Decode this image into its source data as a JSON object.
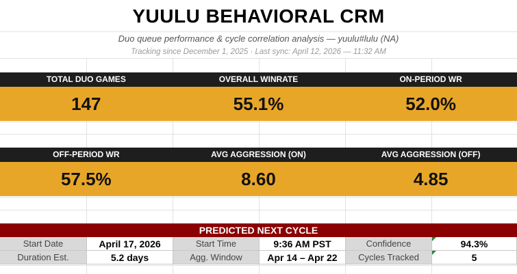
{
  "header": {
    "title": "YUULU BEHAVIORAL CRM",
    "subtitle": "Duo queue performance & cycle correlation analysis — yuulu#lulu (NA)",
    "tracking": "Tracking since December 1, 2025 · Last sync: April 12, 2026 — 11:32 AM"
  },
  "kpis_row1": [
    {
      "label": "TOTAL DUO GAMES",
      "value": "147"
    },
    {
      "label": "OVERALL WINRATE",
      "value": "55.1%"
    },
    {
      "label": "ON-PERIOD WR",
      "value": "52.0%"
    }
  ],
  "kpis_row2": [
    {
      "label": "OFF-PERIOD WR",
      "value": "57.5%"
    },
    {
      "label": "AVG AGGRESSION (ON)",
      "value": "8.60"
    },
    {
      "label": "AVG AGGRESSION (OFF)",
      "value": "4.85"
    }
  ],
  "prediction": {
    "title": "PREDICTED NEXT CYCLE",
    "start_date_label": "Start Date",
    "start_date": "April 17, 2026",
    "start_time_label": "Start Time",
    "start_time": "9:36 AM PST",
    "confidence_label": "Confidence",
    "confidence": "94.3%",
    "duration_label": "Duration Est.",
    "duration": "5.2 days",
    "agg_window_label": "Agg. Window",
    "agg_window": "Apr 14 – Apr 22",
    "cycles_label": "Cycles Tracked",
    "cycles": "5"
  },
  "colors": {
    "kpi_header_bg": "#1e1e1e",
    "kpi_value_bg": "#e8a629",
    "prediction_title_bg": "#8b0000",
    "comment_indicator": "#1f8a3a"
  }
}
